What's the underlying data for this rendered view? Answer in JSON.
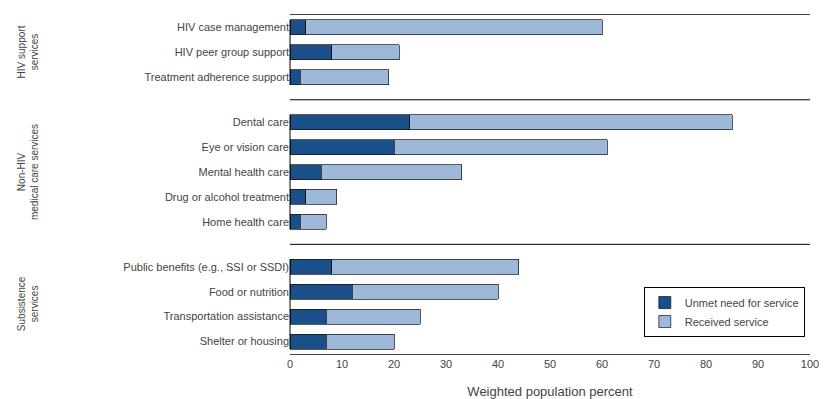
{
  "chart_data": {
    "type": "bar",
    "orientation": "horizontal",
    "stacked": true,
    "categories": [
      "HIV case management",
      "HIV peer group support",
      "Treatment adherence support",
      "Dental care",
      "Eye or vision care",
      "Mental health care",
      "Drug or alcohol treatment",
      "Home health care",
      "Public benefits (e.g., SSI or SSDI)",
      "Food or nutrition",
      "Transportation assistance",
      "Shelter or housing"
    ],
    "series": [
      {
        "name": "Unmet need for service",
        "color": "#1a4f8a",
        "values": [
          3,
          8,
          2,
          23,
          20,
          6,
          3,
          2,
          8,
          12,
          7,
          7
        ]
      },
      {
        "name": "Received service",
        "color": "#9db8d9",
        "values": [
          57,
          13,
          17,
          62,
          41,
          27,
          6,
          5,
          36,
          28,
          18,
          13
        ]
      }
    ],
    "groups": [
      {
        "label": "HIV support\nservices",
        "categories": [
          "HIV case management",
          "HIV peer group support",
          "Treatment adherence support"
        ]
      },
      {
        "label": "Non-HIV\nmedical care services",
        "categories": [
          "Dental care",
          "Eye or vision care",
          "Mental health care",
          "Drug or alcohol treatment",
          "Home health care"
        ]
      },
      {
        "label": "Subsistence\nservices",
        "categories": [
          "Public benefits (e.g., SSI or SSDI)",
          "Food or nutrition",
          "Transportation assistance",
          "Shelter or housing"
        ]
      }
    ],
    "xlabel": "Weighted population percent",
    "xlim": [
      0,
      100
    ],
    "xticks": [
      0,
      10,
      20,
      30,
      40,
      50,
      60,
      70,
      80,
      90,
      100
    ],
    "grid": false,
    "legend": "lower right"
  }
}
